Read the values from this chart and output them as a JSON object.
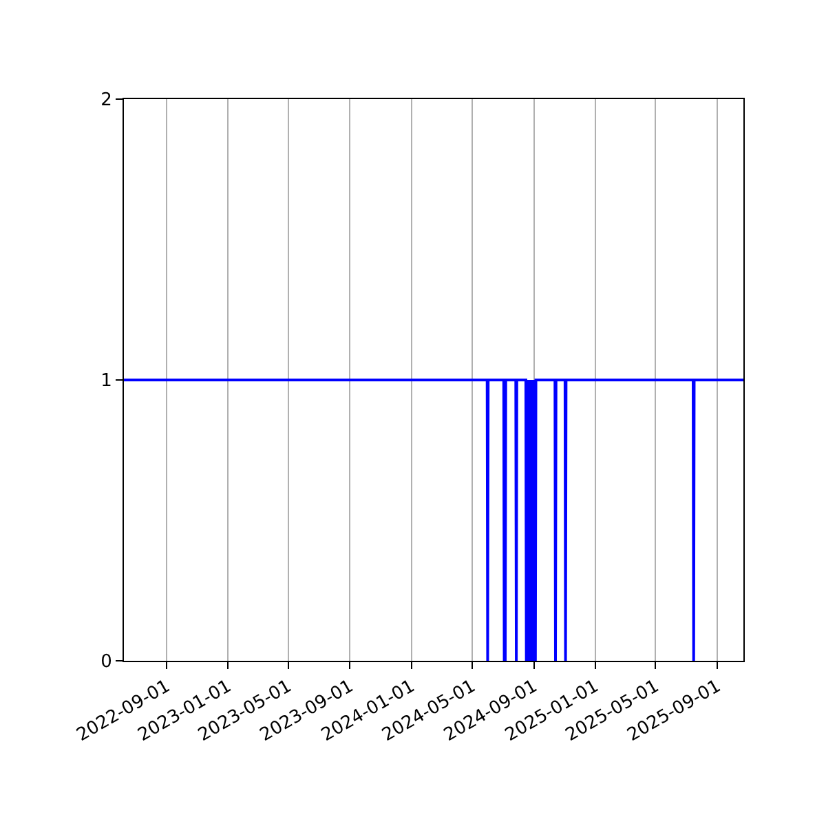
{
  "chart_data": {
    "type": "line",
    "color": "#0000ff",
    "x": [
      "2022-06-08",
      "2024-05-31",
      "2024-06-01",
      "2024-06-02",
      "2024-07-03",
      "2024-07-04",
      "2024-07-05",
      "2024-07-06",
      "2024-07-07",
      "2024-07-27",
      "2024-07-28",
      "2024-07-29",
      "2024-08-16",
      "2024-08-17",
      "2024-08-18",
      "2024-08-19",
      "2024-08-20",
      "2024-08-21",
      "2024-08-22",
      "2024-08-23",
      "2024-08-24",
      "2024-08-25",
      "2024-08-26",
      "2024-08-27",
      "2024-08-28",
      "2024-08-29",
      "2024-08-30",
      "2024-08-31",
      "2024-09-01",
      "2024-09-02",
      "2024-09-03",
      "2024-09-04",
      "2024-09-05",
      "2024-10-13",
      "2024-10-14",
      "2024-10-15",
      "2024-11-02",
      "2024-11-03",
      "2024-11-04",
      "2025-07-15",
      "2025-07-16",
      "2025-07-17",
      "2025-10-23"
    ],
    "values": [
      1,
      1,
      0,
      1,
      1,
      0,
      1,
      0,
      1,
      1,
      0,
      1,
      1,
      0,
      1,
      0,
      1,
      0,
      1,
      0,
      1,
      0,
      1,
      0,
      1,
      0,
      1,
      0,
      1,
      0,
      1,
      0,
      1,
      1,
      0,
      1,
      1,
      0,
      1,
      1,
      0,
      1,
      1
    ],
    "xlim": [
      "2022-06-08",
      "2025-10-23"
    ],
    "xticks": [
      "2022-09-01",
      "2023-01-01",
      "2023-05-01",
      "2023-09-01",
      "2024-01-01",
      "2024-05-01",
      "2024-09-01",
      "2025-01-01",
      "2025-05-01",
      "2025-09-01"
    ],
    "ylim": [
      0,
      2
    ],
    "yticks": [
      0,
      1,
      2
    ],
    "grid": "x"
  }
}
